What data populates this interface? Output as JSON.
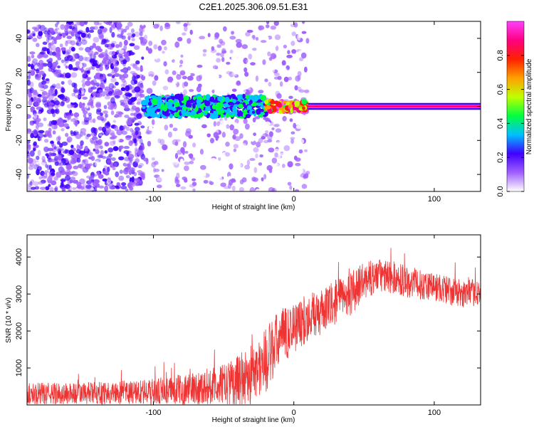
{
  "title": "C2E1.2025.306.09.51.E31",
  "chart_data": [
    {
      "type": "heatmap",
      "xlabel": "Height of straight line (km)",
      "ylabel": "Frequency (Hz)",
      "xlim": [
        -190,
        133
      ],
      "ylim": [
        -50,
        50
      ],
      "xticks": [
        -100,
        0,
        100
      ],
      "yticks": [
        -40,
        -20,
        0,
        20,
        40
      ],
      "xtick_labels": [
        "-100",
        "0",
        "100"
      ],
      "ytick_labels": [
        "-40",
        "-20",
        "0",
        "20",
        "40"
      ],
      "colorbar": {
        "label": "Normalized spectral amplitude",
        "range": [
          0,
          1
        ],
        "ticks": [
          0.0,
          0.2,
          0.4,
          0.6,
          0.8
        ],
        "tick_labels": [
          "0.0",
          "0.2",
          "0.4",
          "0.6",
          "0.8"
        ],
        "colors": [
          "#ffffff",
          "#a060ff",
          "#4000ff",
          "#00c0ff",
          "#00ff40",
          "#c0ff00",
          "#ffa000",
          "#ff2000",
          "#ff0080",
          "#ff40ff"
        ]
      },
      "regions": [
        {
          "name": "noise",
          "x_range": [
            -190,
            -107
          ],
          "freq_range": [
            -50,
            50
          ],
          "amplitude": 0.12
        },
        {
          "name": "sparse-noise",
          "x_range": [
            -107,
            10
          ],
          "freq_range": [
            -50,
            50
          ],
          "amplitude": 0.05
        },
        {
          "name": "signal-onset",
          "x_range": [
            -107,
            -20
          ],
          "freq_center": 0,
          "freq_spread": 6,
          "amplitude": 0.3
        },
        {
          "name": "signal-core",
          "x_range": [
            -20,
            10
          ],
          "freq_center": 0,
          "freq_spread": 3,
          "amplitude": 0.7
        },
        {
          "name": "carrier-line",
          "x_range": [
            10,
            133
          ],
          "freq_center": 0,
          "freq_spread": 1,
          "amplitude": 0.85
        }
      ]
    },
    {
      "type": "line",
      "xlabel": "Height of straight line (km)",
      "ylabel": "SNR (10 * v/v)",
      "xlim": [
        -190,
        133
      ],
      "ylim": [
        0,
        4600
      ],
      "xticks": [
        -100,
        0,
        100
      ],
      "yticks": [
        1000,
        2000,
        3000,
        4000
      ],
      "xtick_labels": [
        "-100",
        "0",
        "100"
      ],
      "ytick_labels": [
        "1000",
        "2000",
        "3000",
        "4000"
      ],
      "series": [
        {
          "name": "SNR",
          "color": "#ee3333",
          "x": [
            -190,
            -170,
            -150,
            -130,
            -110,
            -90,
            -70,
            -50,
            -40,
            -30,
            -20,
            -10,
            0,
            10,
            20,
            30,
            40,
            50,
            60,
            70,
            80,
            90,
            100,
            110,
            120,
            133
          ],
          "y": [
            300,
            300,
            310,
            320,
            340,
            380,
            450,
            550,
            650,
            800,
            1200,
            1800,
            2100,
            2350,
            2500,
            2800,
            3000,
            3350,
            3500,
            3450,
            3350,
            3250,
            3200,
            3100,
            3000,
            3050
          ],
          "spread": [
            300,
            300,
            300,
            320,
            340,
            380,
            450,
            550,
            700,
            900,
            900,
            800,
            700,
            650,
            600,
            600,
            600,
            500,
            450,
            450,
            450,
            400,
            400,
            400,
            380,
            350
          ]
        }
      ]
    }
  ]
}
